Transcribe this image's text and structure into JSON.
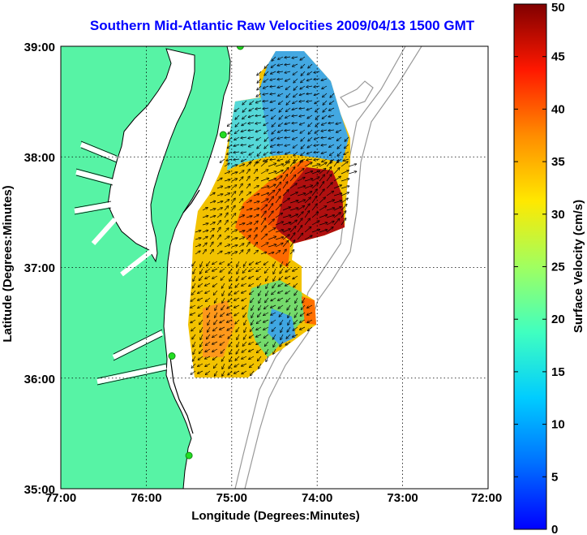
{
  "title": "Southern Mid-Atlantic Raw Velocities 2009/04/13 1500 GMT",
  "xlabel": "Longitude (Degrees:Minutes)",
  "ylabel": "Latitude (Degrees:Minutes)",
  "x_ticks": [
    "77:00",
    "76:00",
    "75:00",
    "74:00",
    "73:00",
    "72:00"
  ],
  "y_ticks": [
    "39:00",
    "38:00",
    "37:00",
    "36:00",
    "35:00"
  ],
  "colorbar": {
    "label": "Surface Velocity (cm/s)",
    "ticks": [
      "0",
      "5",
      "10",
      "15",
      "20",
      "25",
      "30",
      "35",
      "40",
      "45",
      "50"
    ],
    "range": [
      0,
      50
    ]
  },
  "colors": {
    "land": "#57f3a5",
    "water": "#ffffff",
    "title": "#0000ff",
    "station": "#22dd22"
  },
  "stations": [
    {
      "lon": -74.9,
      "lat": 39.0
    },
    {
      "lon": -75.1,
      "lat": 38.2
    },
    {
      "lon": -75.7,
      "lat": 36.2
    },
    {
      "lon": -75.5,
      "lat": 35.3
    }
  ]
}
